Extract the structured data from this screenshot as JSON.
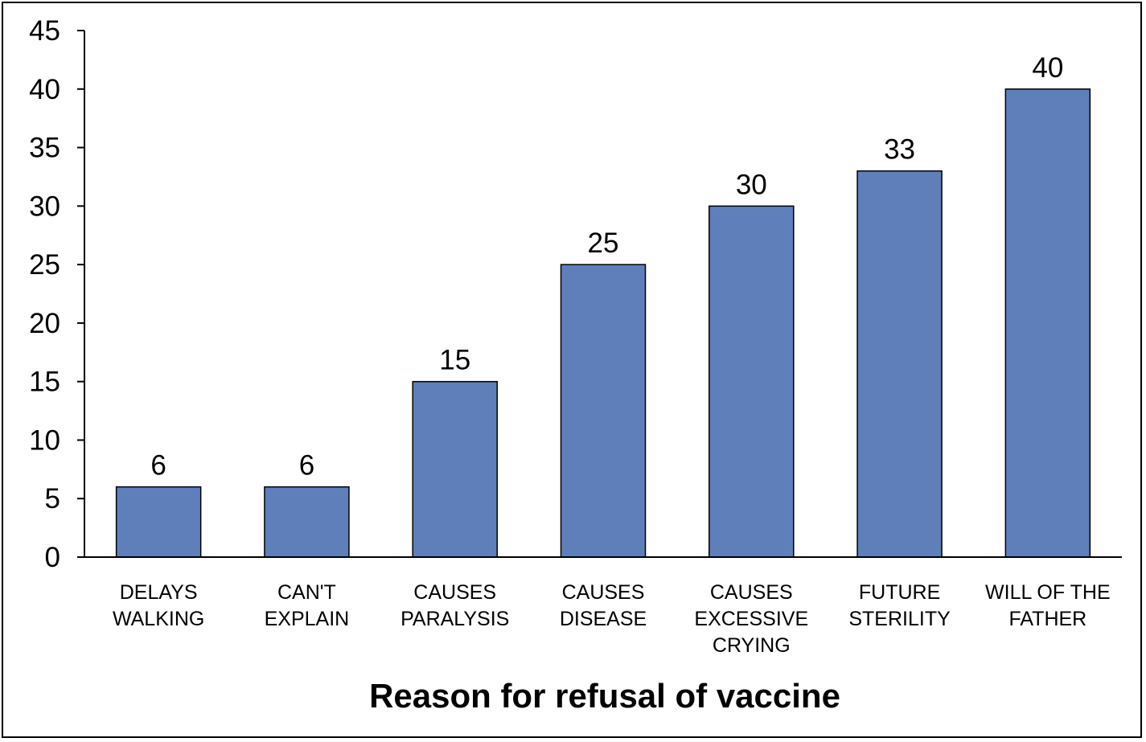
{
  "chart_data": {
    "type": "bar",
    "categories": [
      [
        "DELAYS",
        "WALKING"
      ],
      [
        "CAN'T",
        "EXPLAIN"
      ],
      [
        "CAUSES",
        "PARALYSIS"
      ],
      [
        "CAUSES",
        "DISEASE"
      ],
      [
        "CAUSES",
        "EXCESSIVE",
        "CRYING"
      ],
      [
        "FUTURE",
        "STERILITY"
      ],
      [
        "WILL OF THE",
        "FATHER"
      ]
    ],
    "values": [
      6,
      6,
      15,
      25,
      30,
      33,
      40
    ],
    "data_labels": [
      "6",
      "6",
      "15",
      "25",
      "30",
      "33",
      "40"
    ],
    "xlabel": "Reason for refusal of vaccine",
    "ylabel": "",
    "ylim": [
      0,
      45
    ],
    "yticks": [
      0,
      5,
      10,
      15,
      20,
      25,
      30,
      35,
      40,
      45
    ],
    "grid": false,
    "legend": "none",
    "bar_color": "#5f7fba"
  }
}
